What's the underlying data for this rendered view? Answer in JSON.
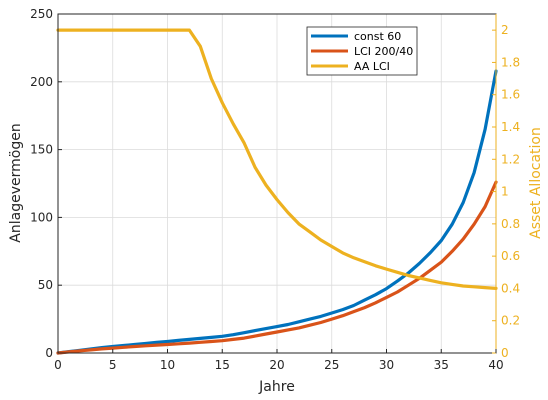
{
  "chart_data": {
    "type": "line",
    "xlabel": "Jahre",
    "ylabel_left": "Anlagevermögen",
    "ylabel_right": "Asset Allocation",
    "xlim": [
      0,
      40
    ],
    "ylim_left": [
      0,
      250
    ],
    "ylim_right": [
      0,
      2.1
    ],
    "xticks": [
      0,
      5,
      10,
      15,
      20,
      25,
      30,
      35,
      40
    ],
    "yticks_left": [
      0,
      50,
      100,
      150,
      200,
      250
    ],
    "yticks_right": [
      0,
      0.2,
      0.4,
      0.6,
      0.8,
      1,
      1.2,
      1.4,
      1.6,
      1.8,
      2
    ],
    "grid": true,
    "legend_position": "top-right",
    "x": [
      0,
      1,
      2,
      3,
      4,
      5,
      6,
      7,
      8,
      9,
      10,
      11,
      12,
      13,
      14,
      15,
      16,
      17,
      18,
      19,
      20,
      21,
      22,
      23,
      24,
      25,
      26,
      27,
      28,
      29,
      30,
      31,
      32,
      33,
      34,
      35,
      36,
      37,
      38,
      39,
      40
    ],
    "series": [
      {
        "name": "const 60",
        "axis": "left",
        "color": "#0072BD",
        "values": [
          0,
          1,
          2,
          3,
          4,
          4.8,
          5.5,
          6.3,
          7,
          7.8,
          8.5,
          9.3,
          10,
          10.8,
          11.5,
          12.3,
          13.5,
          15,
          16.5,
          18,
          19.5,
          21,
          23,
          25,
          27,
          29.5,
          32,
          35,
          39,
          43,
          47.5,
          53,
          59,
          66,
          74,
          83,
          95,
          111,
          133,
          165,
          208
        ]
      },
      {
        "name": "LCI 200/40",
        "axis": "left",
        "color": "#D95319",
        "values": [
          0,
          0.8,
          1.6,
          2.3,
          3,
          3.6,
          4.2,
          4.8,
          5.3,
          5.8,
          6.3,
          6.8,
          7.3,
          7.9,
          8.5,
          9.1,
          10,
          11,
          12.5,
          14,
          15.5,
          17,
          18.5,
          20.5,
          22.5,
          25,
          27.5,
          30.5,
          33.5,
          37,
          41,
          45,
          50,
          55,
          61,
          67,
          75,
          84,
          95,
          108,
          126
        ]
      },
      {
        "name": "AA LCI",
        "axis": "right",
        "color": "#EDB120",
        "values": [
          2,
          2,
          2,
          2,
          2,
          2,
          2,
          2,
          2,
          2,
          2,
          2,
          2,
          1.9,
          1.7,
          1.55,
          1.42,
          1.3,
          1.15,
          1.04,
          0.95,
          0.87,
          0.8,
          0.75,
          0.7,
          0.66,
          0.62,
          0.59,
          0.565,
          0.54,
          0.52,
          0.5,
          0.48,
          0.465,
          0.45,
          0.435,
          0.425,
          0.415,
          0.41,
          0.405,
          0.4
        ]
      }
    ]
  }
}
